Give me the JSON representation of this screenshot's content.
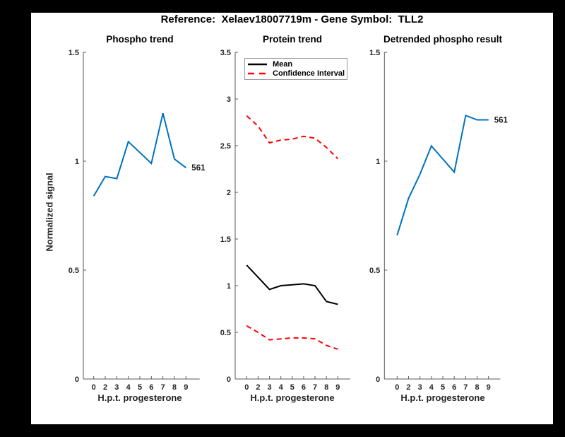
{
  "title": "Reference:  Xelaev18007719m - Gene Symbol:  TLL2",
  "colors": {
    "page_background": "#000000",
    "figure_background": "#ffffff",
    "line_blue": "#0072BD",
    "mean_black": "#000000",
    "ci_red": "#ff0000",
    "axis": "#595959",
    "tick_label": "#262626"
  },
  "chart_data": [
    {
      "type": "line",
      "name": "phospho-trend",
      "title": "Phospho trend",
      "xlabel": "H.p.t. progesterone",
      "ylabel": "Normalized signal",
      "categories": [
        "0",
        "2",
        "3",
        "4",
        "5",
        "6",
        "7",
        "8",
        "9"
      ],
      "ylim": [
        0,
        1.5
      ],
      "yticks": [
        0,
        0.5,
        1,
        1.5
      ],
      "yticklabels": [
        "0",
        "0.5",
        "1",
        "1.5"
      ],
      "grid": false,
      "series": [
        {
          "name": "phospho-561",
          "values": [
            0.84,
            0.93,
            0.92,
            1.09,
            1.04,
            0.99,
            1.22,
            1.01,
            0.97
          ],
          "color": "#0072BD",
          "style": "solid",
          "end_label": "561"
        }
      ]
    },
    {
      "type": "line",
      "name": "protein-trend",
      "title": "Protein trend",
      "xlabel": "H.p.t. progesterone",
      "ylabel": "",
      "categories": [
        "0",
        "2",
        "3",
        "4",
        "5",
        "6",
        "7",
        "8",
        "9"
      ],
      "ylim": [
        0,
        3.5
      ],
      "yticks": [
        0,
        0.5,
        1,
        1.5,
        2,
        2.5,
        3,
        3.5
      ],
      "yticklabels": [
        "0",
        "0.5",
        "1",
        "1.5",
        "2",
        "2.5",
        "3",
        "3.5"
      ],
      "grid": false,
      "legend": [
        "Mean",
        "Confidence Interval"
      ],
      "legend_position": "northwest",
      "series": [
        {
          "name": "ci-upper",
          "values": [
            2.82,
            2.71,
            2.53,
            2.56,
            2.57,
            2.6,
            2.58,
            2.48,
            2.36
          ],
          "color": "#ff0000",
          "style": "dashed"
        },
        {
          "name": "ci-lower",
          "values": [
            0.57,
            0.5,
            0.42,
            0.43,
            0.44,
            0.44,
            0.43,
            0.36,
            0.32
          ],
          "color": "#ff0000",
          "style": "dashed"
        },
        {
          "name": "mean",
          "values": [
            1.22,
            1.09,
            0.96,
            1.0,
            1.01,
            1.02,
            1.0,
            0.83,
            0.8
          ],
          "color": "#000000",
          "style": "solid"
        }
      ]
    },
    {
      "type": "line",
      "name": "detrended-phospho",
      "title": "Detrended phospho result",
      "xlabel": "H.p.t. progesterone",
      "ylabel": "",
      "categories": [
        "0",
        "2",
        "3",
        "4",
        "5",
        "6",
        "7",
        "8",
        "9"
      ],
      "ylim": [
        0,
        1.5
      ],
      "yticks": [
        0,
        0.5,
        1,
        1.5
      ],
      "yticklabels": [
        "0",
        "0.5",
        "1",
        "1.5"
      ],
      "grid": false,
      "series": [
        {
          "name": "detrended-561",
          "values": [
            0.66,
            0.83,
            0.94,
            1.07,
            1.01,
            0.95,
            1.21,
            1.19,
            1.19
          ],
          "color": "#0072BD",
          "style": "solid",
          "end_label": "561"
        }
      ]
    }
  ]
}
